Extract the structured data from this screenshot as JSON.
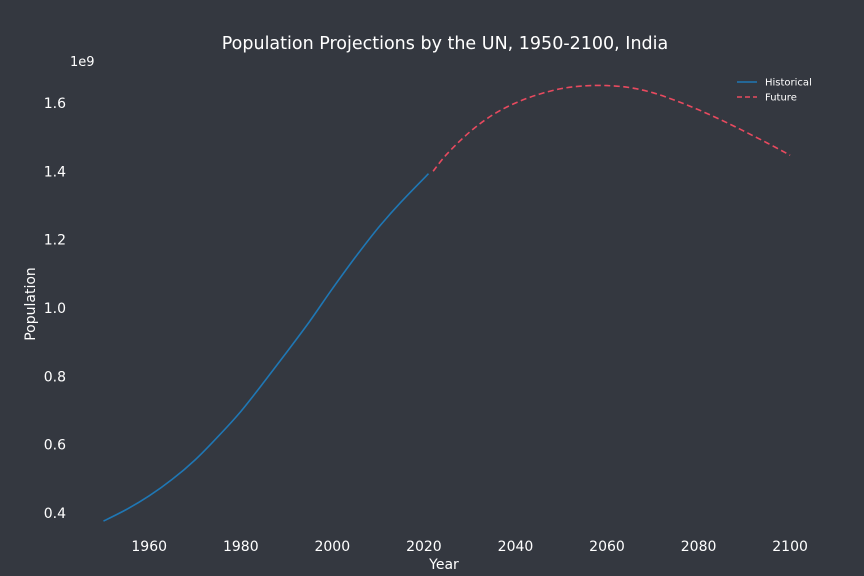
{
  "chart_data": {
    "type": "line",
    "title": "Population Projections by the UN, 1950-2100, India",
    "xlabel": "Year",
    "ylabel": "Population",
    "y_offset_label": "1e9",
    "xlim": [
      1944,
      2105
    ],
    "ylim": [
      0.35,
      1.72
    ],
    "x_ticks": [
      1960,
      1980,
      2000,
      2020,
      2040,
      2060,
      2080,
      2100
    ],
    "y_ticks": [
      0.4,
      0.6,
      0.8,
      1.0,
      1.2,
      1.4,
      1.6
    ],
    "y_tick_labels": [
      "0.4",
      "0.6",
      "0.8",
      "1.0",
      "1.2",
      "1.4",
      "1.6"
    ],
    "grid": false,
    "legend_position": "top-right",
    "series": [
      {
        "name": "Historical",
        "color": "#1f77b4",
        "style": "solid",
        "x": [
          1950,
          1955,
          1960,
          1965,
          1970,
          1975,
          1980,
          1985,
          1990,
          1995,
          2000,
          2005,
          2010,
          2015,
          2021
        ],
        "y": [
          0.376,
          0.41,
          0.45,
          0.498,
          0.555,
          0.623,
          0.697,
          0.782,
          0.87,
          0.96,
          1.056,
          1.148,
          1.234,
          1.31,
          1.393
        ]
      },
      {
        "name": "Future",
        "color": "#e84a5f",
        "style": "dashed",
        "x": [
          2022,
          2025,
          2030,
          2035,
          2040,
          2045,
          2050,
          2055,
          2060,
          2065,
          2070,
          2075,
          2080,
          2085,
          2090,
          2095,
          2100
        ],
        "y": [
          1.4,
          1.45,
          1.515,
          1.565,
          1.6,
          1.625,
          1.642,
          1.65,
          1.651,
          1.645,
          1.63,
          1.607,
          1.58,
          1.55,
          1.517,
          1.483,
          1.447
        ]
      }
    ]
  }
}
